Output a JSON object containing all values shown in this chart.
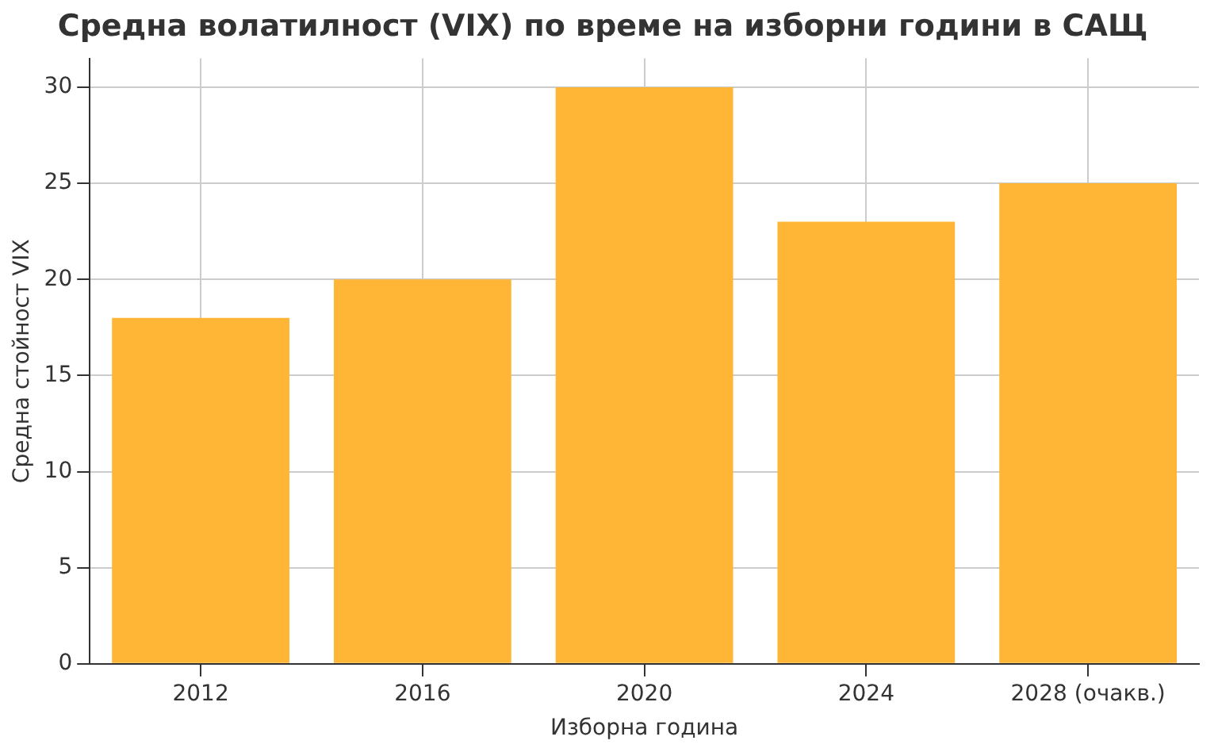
{
  "chart_data": {
    "type": "bar",
    "title": "Средна волатилност (VIX) по време на изборни години в САЩ",
    "xlabel": "Изборна година",
    "ylabel": "Средна стойност VIX",
    "categories": [
      "2012",
      "2016",
      "2020",
      "2024",
      "2028 (очакв.)"
    ],
    "values": [
      18,
      20,
      30,
      23,
      25
    ],
    "color": "#ffb535",
    "ylim": [
      0,
      31.5
    ],
    "yticks": [
      0,
      5,
      10,
      15,
      20,
      25,
      30
    ],
    "grid": true
  }
}
